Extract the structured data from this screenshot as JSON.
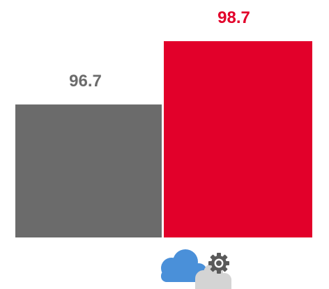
{
  "chart_data": {
    "type": "bar",
    "categories": [
      "",
      ""
    ],
    "series": [
      {
        "values": [
          96.7,
          98.7
        ]
      }
    ],
    "data_labels": [
      "96.7",
      "98.7"
    ],
    "bar_colors": [
      "#6b6b6b",
      "#e2002a"
    ],
    "label_colors": [
      "#6b6b6b",
      "#e2002a"
    ],
    "ylim": [
      92.5,
      100
    ],
    "grid": false,
    "legend": "none",
    "title": "",
    "xlabel": "",
    "ylabel": ""
  },
  "icons": {
    "category_icon": "cloud-gear-icon"
  }
}
